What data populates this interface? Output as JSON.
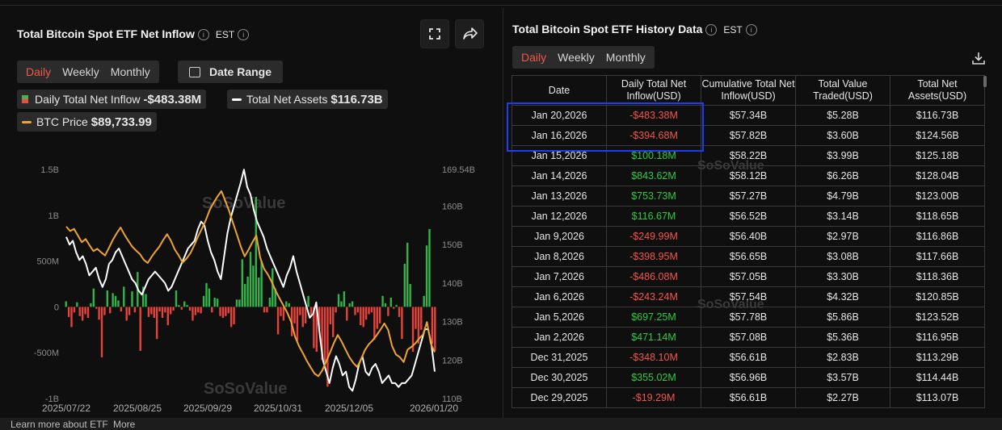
{
  "left_panel": {
    "title": "Total Bitcoin Spot ETF Net Inflow",
    "timezone": "EST",
    "tabs": [
      "Daily",
      "Weekly",
      "Monthly"
    ],
    "active_tab": "Daily",
    "date_range_label": "Date Range",
    "legend": {
      "inflow_label": "Daily Total Net Inflow",
      "inflow_value": "-$483.38M",
      "assets_label": "Total Net Assets",
      "assets_value": "$116.73B",
      "price_label": "BTC Price",
      "price_value": "$89,733.99"
    },
    "watermark": "SoSoValue"
  },
  "chart_data": {
    "type": "bar",
    "left_axis_ticks": [
      "1.5B",
      "1B",
      "500M",
      "0",
      "-500M",
      "-1B"
    ],
    "right_axis_ticks": [
      "169.54B",
      "160B",
      "150B",
      "140B",
      "130B",
      "120B",
      "110B"
    ],
    "x_ticks": [
      "2025/07/22",
      "2025/08/25",
      "2025/09/29",
      "2025/10/31",
      "2025/12/05",
      "2026/01/20"
    ],
    "ylim_left": [
      -1000,
      1500
    ],
    "ylim_right": [
      110,
      169.54
    ],
    "colors": {
      "inflow_pos": "#34b34a",
      "inflow_neg": "#e8433a",
      "assets": "#ffffff",
      "price": "#f0a430"
    },
    "series": [
      {
        "name": "Daily Total Net Inflow",
        "unit": "M USD",
        "values": [
          60,
          -110,
          -220,
          -60,
          50,
          -100,
          -150,
          -80,
          -120,
          40,
          200,
          -20,
          -140,
          -550,
          -90,
          180,
          -70,
          150,
          120,
          70,
          -50,
          220,
          -150,
          -90,
          170,
          -60,
          380,
          -480,
          220,
          140,
          -110,
          -80,
          -120,
          -350,
          -50,
          -120,
          -60,
          -200,
          -80,
          -40,
          180,
          20,
          -30,
          60,
          20,
          -40,
          -150,
          -90,
          -60,
          -70,
          120,
          260,
          200,
          -60,
          100,
          90,
          -100,
          -120,
          -100,
          -70,
          -220,
          -190,
          80,
          80,
          520,
          250,
          330,
          600,
          450,
          1200,
          320,
          500,
          -60,
          -60,
          100,
          420,
          200,
          -300,
          -100,
          -150,
          60,
          40,
          -320,
          -180,
          -370,
          -90,
          -220,
          -180,
          120,
          -90,
          -450,
          -490,
          -240,
          -580,
          -600,
          -870,
          -190,
          -330,
          -60,
          140,
          60,
          170,
          -150,
          40,
          60,
          -90,
          -60,
          -200,
          -220,
          -140,
          -80,
          -60,
          -360,
          -240,
          -180,
          120,
          40,
          -100,
          100,
          -20,
          20,
          -110,
          -350,
          470,
          700,
          250,
          -490,
          -240,
          -400,
          -250,
          120,
          670,
          850,
          -400,
          -480
        ]
      },
      {
        "name": "Total Net Assets",
        "unit": "B USD",
        "values": [
          152,
          150,
          151,
          148,
          146,
          147,
          145,
          142,
          143,
          144,
          141,
          139,
          141,
          145,
          146,
          148,
          149,
          147,
          145,
          143,
          141,
          140,
          138,
          137,
          139,
          141,
          142,
          143,
          142,
          141,
          140,
          138,
          139,
          141,
          143,
          145,
          147,
          149,
          150,
          151,
          154,
          156,
          155,
          151,
          148,
          146,
          143,
          141,
          147,
          153,
          157,
          160,
          163,
          166,
          169.5,
          165,
          163,
          159,
          156,
          154,
          152,
          149,
          147,
          145,
          143,
          141,
          139,
          142,
          144,
          147,
          143,
          140,
          137,
          134,
          131,
          132,
          135,
          127,
          120,
          117,
          114,
          118,
          121,
          119,
          116,
          117,
          113,
          112,
          115,
          119,
          121,
          117,
          116,
          118,
          119,
          117,
          114,
          115,
          116,
          114,
          114,
          113,
          114,
          114,
          115,
          116,
          119,
          122,
          125,
          128,
          128,
          124,
          117
        ]
      },
      {
        "name": "BTC Price",
        "unit": "USD",
        "values": [
          118000,
          117000,
          117500,
          116000,
          114500,
          115200,
          113800,
          112500,
          113000,
          112200,
          111500,
          113200,
          115000,
          116500,
          117800,
          116200,
          114800,
          113500,
          112600,
          111800,
          110500,
          109800,
          111200,
          112400,
          113500,
          115000,
          116300,
          114800,
          112800,
          111500,
          109900,
          110800,
          112000,
          113800,
          115800,
          117600,
          119500,
          121800,
          123400,
          124800,
          126000,
          123800,
          121500,
          118800,
          116200,
          113500,
          111300,
          112800,
          114500,
          116000,
          111000,
          108500,
          107200,
          105500,
          103500,
          101800,
          100200,
          98600,
          96500,
          93200,
          91100,
          89500,
          87800,
          86300,
          84900,
          84300,
          85600,
          87600,
          89600,
          91800,
          93600,
          92100,
          90300,
          88600,
          87300,
          86400,
          88100,
          90200,
          91500,
          92400,
          93500,
          94800,
          96200,
          94700,
          91100,
          89200,
          88600,
          87500,
          90300,
          90900,
          91700,
          92800,
          93700,
          96500,
          91600,
          89700
        ]
      }
    ]
  },
  "right_panel": {
    "title": "Total Bitcoin Spot ETF History Data",
    "timezone": "EST",
    "tabs": [
      "Daily",
      "Weekly",
      "Monthly"
    ],
    "active_tab": "Daily",
    "columns": [
      "Date",
      "Daily Total Net Inflow(USD)",
      "Cumulative Total Net Inflow(USD)",
      "Total Value Traded(USD)",
      "Total Net Assets(USD)"
    ],
    "rows": [
      {
        "date": "Jan 20,2026",
        "inflow": "-$483.38M",
        "cum": "$57.34B",
        "traded": "$5.28B",
        "assets": "$116.73B"
      },
      {
        "date": "Jan 16,2026",
        "inflow": "-$394.68M",
        "cum": "$57.82B",
        "traded": "$3.60B",
        "assets": "$124.56B"
      },
      {
        "date": "Jan 15,2026",
        "inflow": "$100.18M",
        "cum": "$58.22B",
        "traded": "$3.99B",
        "assets": "$125.18B"
      },
      {
        "date": "Jan 14,2026",
        "inflow": "$843.62M",
        "cum": "$58.12B",
        "traded": "$6.26B",
        "assets": "$128.04B"
      },
      {
        "date": "Jan 13,2026",
        "inflow": "$753.73M",
        "cum": "$57.27B",
        "traded": "$4.79B",
        "assets": "$123.00B"
      },
      {
        "date": "Jan 12,2026",
        "inflow": "$116.67M",
        "cum": "$56.52B",
        "traded": "$3.14B",
        "assets": "$118.65B"
      },
      {
        "date": "Jan 9,2026",
        "inflow": "-$249.99M",
        "cum": "$56.40B",
        "traded": "$2.97B",
        "assets": "$116.86B"
      },
      {
        "date": "Jan 8,2026",
        "inflow": "-$398.95M",
        "cum": "$56.65B",
        "traded": "$3.08B",
        "assets": "$117.66B"
      },
      {
        "date": "Jan 7,2026",
        "inflow": "-$486.08M",
        "cum": "$57.05B",
        "traded": "$3.30B",
        "assets": "$118.36B"
      },
      {
        "date": "Jan 6,2026",
        "inflow": "-$243.24M",
        "cum": "$57.54B",
        "traded": "$4.32B",
        "assets": "$120.85B"
      },
      {
        "date": "Jan 5,2026",
        "inflow": "$697.25M",
        "cum": "$57.78B",
        "traded": "$5.86B",
        "assets": "$123.52B"
      },
      {
        "date": "Jan 2,2026",
        "inflow": "$471.14M",
        "cum": "$57.08B",
        "traded": "$5.36B",
        "assets": "$116.95B"
      },
      {
        "date": "Dec 31,2025",
        "inflow": "-$348.10M",
        "cum": "$56.61B",
        "traded": "$2.83B",
        "assets": "$113.29B"
      },
      {
        "date": "Dec 30,2025",
        "inflow": "$355.02M",
        "cum": "$56.96B",
        "traded": "$3.57B",
        "assets": "$114.44B"
      },
      {
        "date": "Dec 29,2025",
        "inflow": "-$19.29M",
        "cum": "$56.61B",
        "traded": "$2.27B",
        "assets": "$113.07B"
      }
    ],
    "watermark": "SoSoValue"
  },
  "footer": {
    "learn_more": "Learn more about ETF",
    "more": "More"
  }
}
